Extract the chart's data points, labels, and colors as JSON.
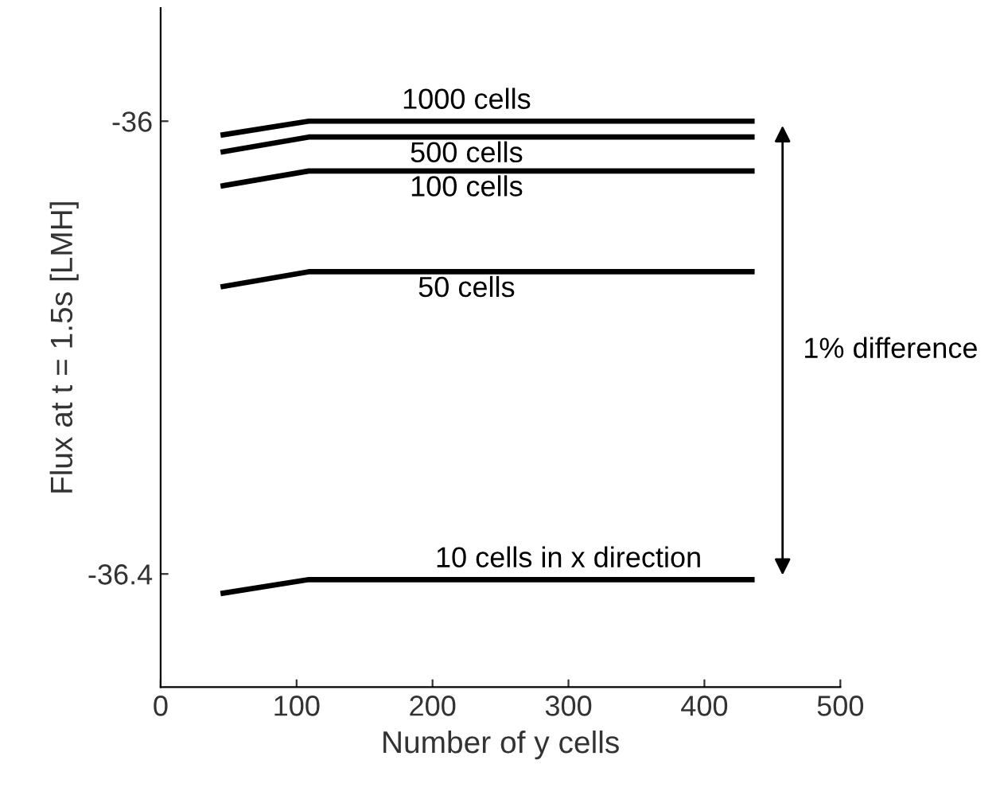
{
  "chart_data": {
    "type": "line",
    "xlabel": "Number of y cells",
    "ylabel": "Flux at t = 1.5s [LMH]",
    "x": [
      46,
      109,
      435
    ],
    "series": [
      {
        "name": "1000 cells",
        "color": "#000000",
        "values": [
          -36.012,
          -36.0,
          -36.0
        ]
      },
      {
        "name": "500 cells",
        "color": "#000000",
        "values": [
          -36.027,
          -36.014,
          -36.014
        ]
      },
      {
        "name": "100 cells",
        "color": "#000000",
        "values": [
          -36.057,
          -36.044,
          -36.044
        ]
      },
      {
        "name": "50 cells",
        "color": "#000000",
        "values": [
          -36.146,
          -36.133,
          -36.133
        ]
      },
      {
        "name": "10 cells in x direction",
        "color": "#000000",
        "values": [
          -36.417,
          -36.405,
          -36.405
        ]
      }
    ],
    "xlim": [
      0,
      500
    ],
    "xticks": [
      0,
      100,
      200,
      300,
      400,
      500
    ],
    "ylim": [
      -36.5,
      -35.9
    ],
    "yticks": [
      -36,
      -36.4
    ],
    "annotations": [
      "1% difference"
    ],
    "grid": false,
    "legend": false,
    "marker": "none",
    "line_style": "solid"
  }
}
